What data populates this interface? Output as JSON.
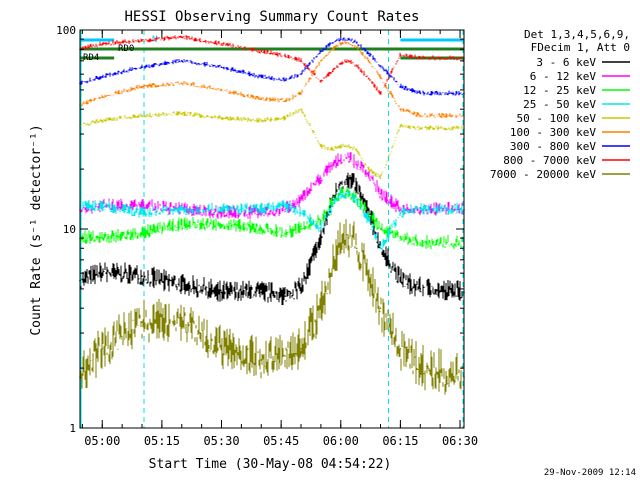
{
  "chart_data": {
    "type": "line",
    "title": "HESSI Observing Summary Count Rates",
    "xlabel": "Start Time (30-May-08 04:54:22)",
    "ylabel": "Count Rate (s⁻¹ detector⁻¹)",
    "ylog": true,
    "ylim": [
      1,
      100
    ],
    "xlim_minutes_after_0500": [
      -5.6,
      91
    ],
    "x_ticks": [
      "05:00",
      "05:15",
      "05:30",
      "05:45",
      "06:00",
      "06:15",
      "06:30"
    ],
    "y_ticks": [
      "1",
      "10",
      "100"
    ],
    "legend_position": "top-right",
    "legend_header": [
      "Det 1,3,4,5,6,9,",
      "FDecim 1, Att 0"
    ],
    "footer_timestamp": "29-Nov-2009 12:14",
    "flags": {
      "labels": [
        "RD0",
        "RD4",
        "N"
      ],
      "bars": [
        {
          "name": "RD0",
          "color": "#00c8ff",
          "segments": [
            [
              -5.6,
              3
            ],
            [
              75,
              91
            ]
          ]
        },
        {
          "name": "RD0-green",
          "color": "#208020",
          "segments": [
            [
              -5.6,
              91
            ]
          ]
        },
        {
          "name": "RD4",
          "color": "#208020",
          "segments": [
            [
              -5.6,
              3
            ],
            [
              75,
              91
            ]
          ]
        }
      ],
      "night_boundaries_minutes": [
        10.5,
        72
      ]
    },
    "saa_dashed_minutes": [
      10.5,
      72
    ],
    "series": [
      {
        "name": "3 - 6 keV",
        "color": "#000000",
        "x": [
          -5.6,
          0,
          10,
          20,
          30,
          40,
          46,
          50,
          55,
          58,
          60,
          62,
          64,
          67,
          70,
          75,
          80,
          91
        ],
        "y": [
          5.5,
          6,
          5.8,
          5.2,
          4.8,
          4.8,
          4.6,
          5,
          9,
          14,
          17,
          17.5,
          16,
          12,
          8,
          5.5,
          5,
          4.8
        ]
      },
      {
        "name": "6 - 12 keV",
        "color": "#ff00ff",
        "x": [
          -5.6,
          0,
          10,
          20,
          30,
          40,
          46,
          50,
          55,
          58,
          60,
          62,
          64,
          67,
          70,
          75,
          80,
          91
        ],
        "y": [
          12.5,
          13,
          13,
          12.5,
          12,
          12,
          12.5,
          14,
          18,
          21,
          22.5,
          23,
          21,
          19,
          15,
          12.5,
          12.5,
          12.5
        ]
      },
      {
        "name": "12 - 25 keV",
        "color": "#00ff00",
        "x": [
          -5.6,
          0,
          10,
          20,
          30,
          40,
          46,
          50,
          55,
          58,
          60,
          62,
          64,
          67,
          70,
          75,
          80,
          91
        ],
        "y": [
          9,
          9,
          9.5,
          10.5,
          10.5,
          10,
          9.5,
          10,
          11,
          13.5,
          15,
          15,
          14,
          12,
          10,
          9,
          8.5,
          8.5
        ]
      },
      {
        "name": "25 - 50 keV",
        "color": "#00e8e8",
        "x": [
          -5.6,
          0,
          10,
          20,
          30,
          40,
          46,
          50,
          55,
          58,
          60,
          62,
          64,
          67,
          70,
          75,
          80,
          91
        ],
        "y": [
          13,
          13,
          12,
          12.5,
          12.5,
          12.5,
          13,
          12,
          10,
          13,
          15,
          15,
          14,
          11,
          8,
          12,
          12.5,
          12.5
        ]
      },
      {
        "name": "50 - 100 keV",
        "color": "#c8c800",
        "x": [
          -5.6,
          0,
          10,
          20,
          30,
          40,
          46,
          50,
          55,
          58,
          60,
          62,
          64,
          67,
          70,
          75,
          80,
          91
        ],
        "y": [
          33,
          35,
          37,
          38,
          36,
          35,
          36,
          40,
          26,
          25,
          26,
          26,
          25,
          20,
          18,
          33,
          32,
          32
        ]
      },
      {
        "name": "100 - 300 keV",
        "color": "#ff8000",
        "x": [
          -5.6,
          0,
          10,
          20,
          30,
          40,
          46,
          50,
          55,
          58,
          60,
          62,
          64,
          67,
          70,
          75,
          80,
          91
        ],
        "y": [
          42,
          46,
          52,
          54,
          50,
          45,
          44,
          48,
          70,
          80,
          85,
          86,
          82,
          70,
          58,
          40,
          37,
          37
        ]
      },
      {
        "name": "300 - 800 keV",
        "color": "#0000ff",
        "x": [
          -5.6,
          0,
          10,
          20,
          30,
          40,
          46,
          50,
          55,
          58,
          60,
          62,
          64,
          67,
          70,
          75,
          80,
          91
        ],
        "y": [
          54,
          58,
          65,
          70,
          65,
          58,
          56,
          60,
          78,
          86,
          90,
          90,
          86,
          76,
          66,
          52,
          48,
          48
        ]
      },
      {
        "name": "800 - 7000 keV",
        "color": "#ff0000",
        "x": [
          -5.6,
          0,
          10,
          20,
          30,
          40,
          46,
          50,
          55,
          58,
          60,
          62,
          64,
          67,
          70,
          75,
          80,
          91
        ],
        "y": [
          80,
          85,
          88,
          92,
          85,
          78,
          74,
          70,
          55,
          62,
          68,
          70,
          66,
          57,
          48,
          75,
          72,
          72
        ]
      },
      {
        "name": "7000 - 20000 keV",
        "color": "#808000",
        "x": [
          -5.6,
          0,
          10,
          20,
          30,
          40,
          46,
          50,
          55,
          58,
          60,
          62,
          64,
          67,
          70,
          75,
          80,
          91
        ],
        "y": [
          1.8,
          2.5,
          3.4,
          3.5,
          2.5,
          2.2,
          2.3,
          2.5,
          4,
          6.5,
          8.5,
          9,
          8,
          6,
          4,
          2.5,
          2,
          1.8
        ]
      }
    ]
  }
}
